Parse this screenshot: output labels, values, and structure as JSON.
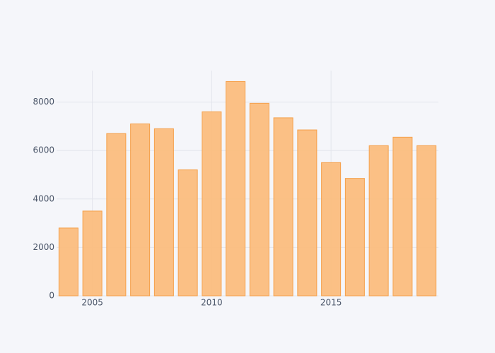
{
  "chart_data": {
    "type": "bar",
    "x": [
      2004,
      2005,
      2006,
      2007,
      2008,
      2009,
      2010,
      2011,
      2012,
      2013,
      2014,
      2015,
      2016,
      2017,
      2018,
      2019
    ],
    "values": [
      2800,
      3500,
      6700,
      7100,
      6900,
      5200,
      7600,
      8850,
      7950,
      7350,
      6850,
      5500,
      4850,
      6200,
      6550,
      6200
    ],
    "color": "#fbbd7e",
    "edge_color": "#f5a04a",
    "xlim": [
      2003.5,
      2019.5
    ],
    "xticks": [
      2005,
      2010,
      2015
    ],
    "ylim": [
      0,
      9300
    ],
    "yticks": [
      0,
      2000,
      4000,
      6000,
      8000
    ],
    "grid": true
  }
}
